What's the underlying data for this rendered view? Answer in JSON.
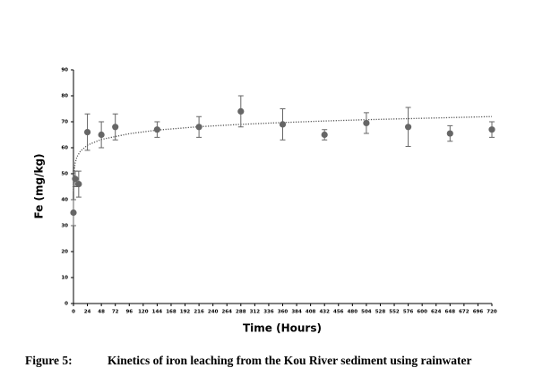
{
  "chart_data": {
    "type": "scatter",
    "x_label": "Time (Hours)",
    "y_label": "Fe (mg/kg)",
    "caption_label": "Figure 5:",
    "caption": "Kinetics of iron leaching from the Kou River sediment using rainwater",
    "xlim": [
      0,
      720
    ],
    "xticks": [
      0,
      24,
      48,
      72,
      96,
      120,
      144,
      168,
      192,
      216,
      240,
      264,
      288,
      312,
      336,
      360,
      384,
      408,
      432,
      456,
      480,
      504,
      528,
      552,
      576,
      600,
      624,
      648,
      672,
      696,
      720
    ],
    "ylim": [
      0,
      90
    ],
    "yticks": [
      0,
      10,
      20,
      30,
      40,
      50,
      60,
      70,
      80,
      90
    ],
    "series": [
      {
        "color": "#666666",
        "x": [
          0,
          3,
          9,
          24,
          48,
          72,
          144,
          216,
          288,
          360,
          432,
          504,
          576,
          648,
          720
        ],
        "values": [
          35,
          48,
          46,
          66,
          65,
          68,
          67,
          68,
          74,
          69,
          65,
          69.5,
          68,
          65.5,
          67
        ],
        "errors": [
          5,
          3,
          5,
          7,
          5,
          5,
          3,
          4,
          6,
          6,
          2,
          4,
          7.5,
          3,
          3
        ]
      }
    ],
    "trendline": {
      "color": "#555555",
      "x": [
        0.1,
        1,
        3,
        6,
        12,
        24,
        48,
        96,
        144,
        216,
        288,
        360,
        432,
        504,
        576,
        648,
        720
      ],
      "values": [
        43.3,
        50.7,
        54.2,
        56.5,
        58.7,
        61.0,
        63.2,
        65.4,
        66.8,
        68.1,
        69.0,
        69.7,
        70.3,
        70.8,
        71.2,
        71.6,
        72.0
      ]
    }
  }
}
